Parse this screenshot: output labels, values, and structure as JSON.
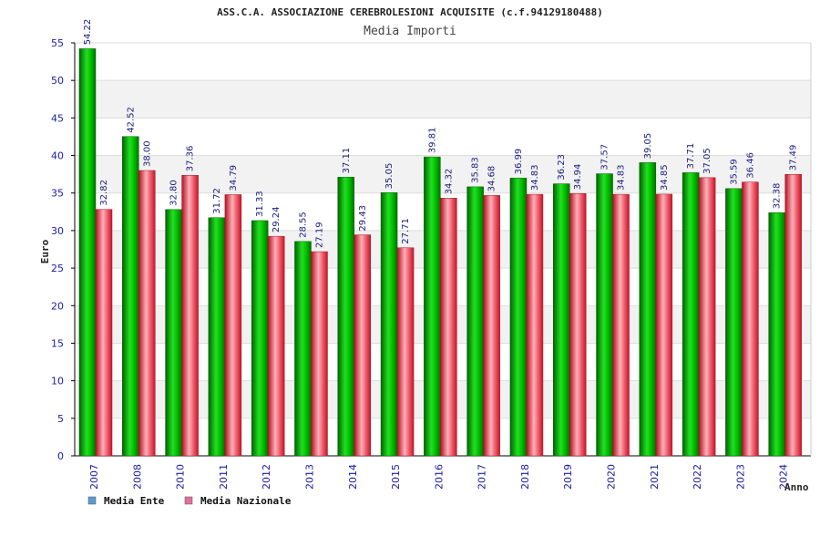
{
  "chart_data": {
    "type": "bar",
    "title": "ASS.C.A. ASSOCIAZIONE CEREBROLESIONI ACQUISITE (c.f.94129180488)",
    "subtitle": "Media Importi",
    "xlabel": "Anno",
    "ylabel": "Euro",
    "ylim": [
      0,
      55
    ],
    "yticks": [
      0,
      5,
      10,
      15,
      20,
      25,
      30,
      35,
      40,
      45,
      50,
      55
    ],
    "grid": true,
    "legend_position": "bottom-left",
    "categories": [
      "2007",
      "2008",
      "2010",
      "2011",
      "2012",
      "2013",
      "2014",
      "2015",
      "2016",
      "2017",
      "2018",
      "2019",
      "2020",
      "2021",
      "2022",
      "2023",
      "2024"
    ],
    "series": [
      {
        "name": "Media Ente",
        "color": "#00c000",
        "legend_color": "#5b9bd5",
        "values": [
          54.22,
          42.52,
          32.8,
          31.72,
          31.33,
          28.55,
          37.11,
          35.05,
          39.81,
          35.83,
          36.99,
          36.23,
          37.57,
          39.05,
          37.71,
          35.59,
          32.38
        ],
        "labels": [
          "54.22",
          "42.52",
          "32.80",
          "31.72",
          "31.33",
          "28.55",
          "37.11",
          "35.05",
          "39.81",
          "35.83",
          "36.99",
          "36.23",
          "37.57",
          "39.05",
          "37.71",
          "35.59",
          "32.38"
        ]
      },
      {
        "name": "Media Nazionale",
        "color": "#e83040",
        "legend_color": "#e070a0",
        "values": [
          32.82,
          38.0,
          37.36,
          34.79,
          29.24,
          27.19,
          29.43,
          27.71,
          34.32,
          34.68,
          34.83,
          34.94,
          34.83,
          34.85,
          37.05,
          36.46,
          37.49
        ],
        "labels": [
          "32.82",
          "38.00",
          "37.36",
          "34.79",
          "29.24",
          "27.19",
          "29.43",
          "27.71",
          "34.32",
          "34.68",
          "34.83",
          "34.94",
          "34.83",
          "34.85",
          "37.05",
          "36.46",
          "37.49"
        ]
      }
    ]
  }
}
